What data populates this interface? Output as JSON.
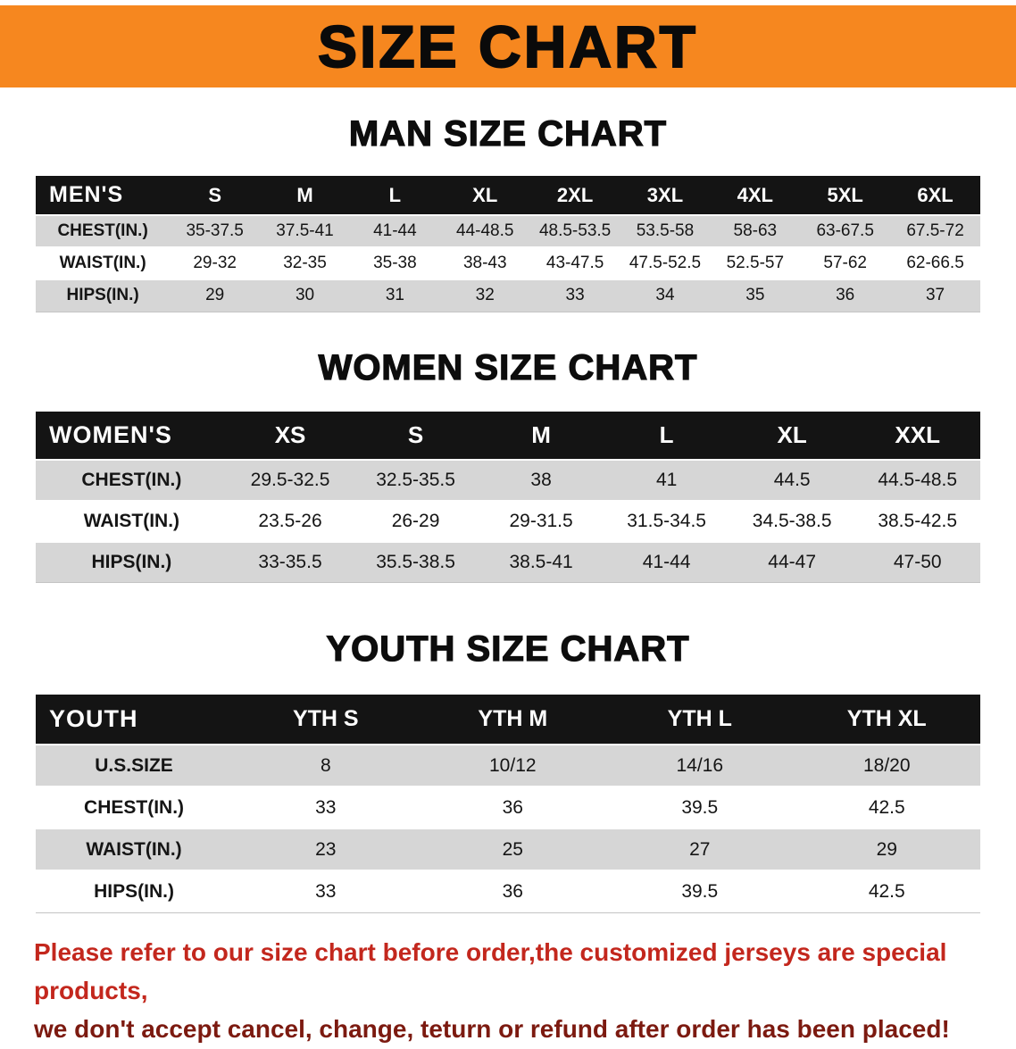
{
  "banner": {
    "title": "SIZE CHART"
  },
  "chart_data": [
    {
      "type": "table",
      "title": "MAN SIZE CHART",
      "header": [
        "MEN'S",
        "S",
        "M",
        "L",
        "XL",
        "2XL",
        "3XL",
        "4XL",
        "5XL",
        "6XL"
      ],
      "rows": [
        [
          "CHEST(IN.)",
          "35-37.5",
          "37.5-41",
          "41-44",
          "44-48.5",
          "48.5-53.5",
          "53.5-58",
          "58-63",
          "63-67.5",
          "67.5-72"
        ],
        [
          "WAIST(IN.)",
          "29-32",
          "32-35",
          "35-38",
          "38-43",
          "43-47.5",
          "47.5-52.5",
          "52.5-57",
          "57-62",
          "62-66.5"
        ],
        [
          "HIPS(IN.)",
          "29",
          "30",
          "31",
          "32",
          "33",
          "34",
          "35",
          "36",
          "37"
        ]
      ]
    },
    {
      "type": "table",
      "title": "WOMEN SIZE CHART",
      "header": [
        "WOMEN'S",
        "XS",
        "S",
        "M",
        "L",
        "XL",
        "XXL"
      ],
      "rows": [
        [
          "CHEST(IN.)",
          "29.5-32.5",
          "32.5-35.5",
          "38",
          "41",
          "44.5",
          "44.5-48.5"
        ],
        [
          "WAIST(IN.)",
          "23.5-26",
          "26-29",
          "29-31.5",
          "31.5-34.5",
          "34.5-38.5",
          "38.5-42.5"
        ],
        [
          "HIPS(IN.)",
          "33-35.5",
          "35.5-38.5",
          "38.5-41",
          "41-44",
          "44-47",
          "47-50"
        ]
      ]
    },
    {
      "type": "table",
      "title": "YOUTH SIZE CHART",
      "header": [
        "YOUTH",
        "YTH S",
        "YTH M",
        "YTH L",
        "YTH XL"
      ],
      "rows": [
        [
          "U.S.SIZE",
          "8",
          "10/12",
          "14/16",
          "18/20"
        ],
        [
          "CHEST(IN.)",
          "33",
          "36",
          "39.5",
          "42.5"
        ],
        [
          "WAIST(IN.)",
          "23",
          "25",
          "27",
          "29"
        ],
        [
          "HIPS(IN.)",
          "33",
          "36",
          "39.5",
          "42.5"
        ]
      ]
    }
  ],
  "disclaimer": {
    "lines": [
      "Please refer to our size chart before order,the customized jerseys are special products,",
      "we don't accept cancel, change, teturn or refund after order has been placed!"
    ]
  },
  "colors": {
    "banner_orange": "#f6871f",
    "header_black": "#141414",
    "row_gray": "#d6d6d6",
    "disclaimer_red": "#c3271d",
    "disclaimer_dark_red": "#7c1a10"
  }
}
